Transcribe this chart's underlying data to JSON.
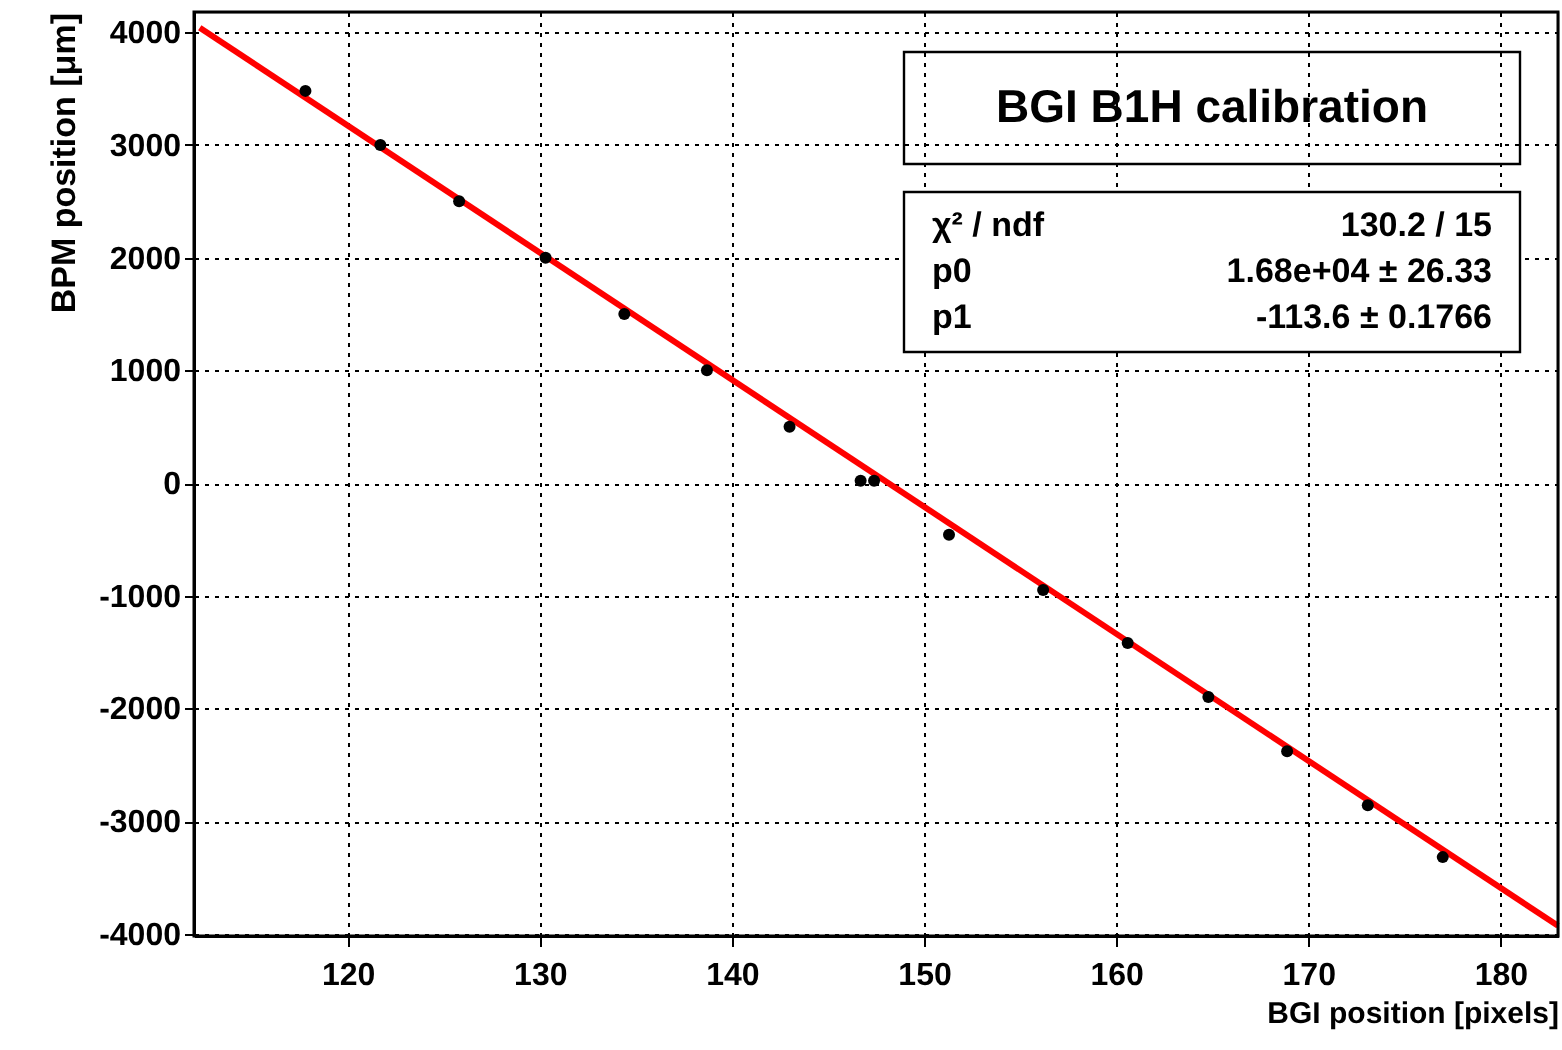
{
  "chart_data": {
    "type": "scatter",
    "title": "BGI B1H calibration",
    "xlabel": "BGI position [pixels]",
    "ylabel": "BPM position [μm]",
    "x": [
      117.8,
      121.7,
      125.8,
      130.3,
      134.4,
      138.7,
      143.0,
      146.7,
      147.4,
      151.3,
      156.2,
      160.6,
      164.8,
      168.9,
      173.1,
      177.0
    ],
    "series": [
      {
        "color": "#000000",
        "values": [
          3480,
          3000,
          2500,
          2000,
          1500,
          1000,
          500,
          20,
          20,
          -460,
          -950,
          -1420,
          -1900,
          -2380,
          -2860,
          -3320
        ]
      },
      {
        "type": "line",
        "color": "#ff0000",
        "marker": "none",
        "line_style": "solid",
        "x": [
          112.3,
          183
        ],
        "values": [
          4040,
          -3930
        ]
      }
    ],
    "xlim": [
      112,
      183
    ],
    "ylim": [
      -4020,
      4180
    ],
    "xticks": [
      120,
      130,
      140,
      150,
      160,
      170,
      180
    ],
    "yticks": [
      -4000,
      -3000,
      -2000,
      -1000,
      0,
      1000,
      2000,
      3000,
      4000
    ],
    "grid": true,
    "marker": "circle",
    "annotations": [
      "χ² / ndf",
      "130.2 / 15",
      "p0",
      "1.68e+04 ± 26.33",
      "p1",
      "-113.6 ± 0.1766"
    ]
  }
}
